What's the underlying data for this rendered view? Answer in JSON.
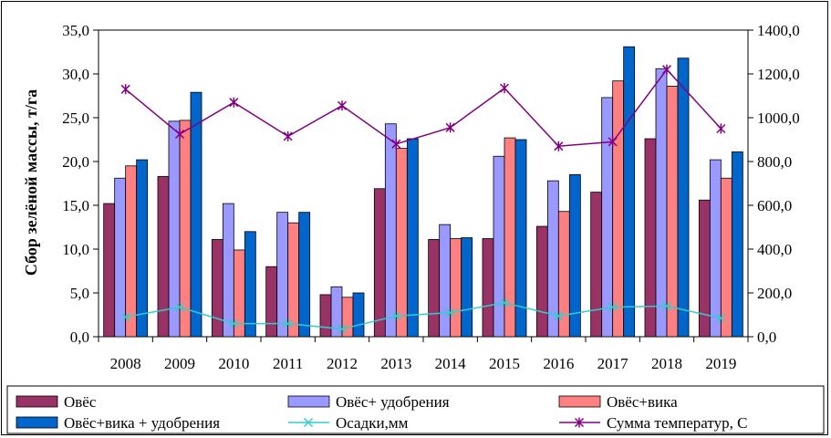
{
  "chart_data": {
    "type": "bar",
    "categories": [
      "2008",
      "2009",
      "2010",
      "2011",
      "2012",
      "2013",
      "2014",
      "2015",
      "2016",
      "2017",
      "2018",
      "2019"
    ],
    "ylabel": "Сбор зелёной массы, т/га",
    "ylim": [
      0,
      35
    ],
    "y_ticks": [
      "0,0",
      "5,0",
      "10,0",
      "15,0",
      "20,0",
      "25,0",
      "30,0",
      "35,0"
    ],
    "y2lim": [
      0,
      1400
    ],
    "y2_ticks": [
      "0,0",
      "200,0",
      "400,0",
      "600,0",
      "800,0",
      "1000,0",
      "1200,0",
      "1400,0"
    ],
    "series": [
      {
        "name": "Овёс",
        "kind": "bar",
        "axis": "left",
        "color": "#993366",
        "values": [
          15.2,
          18.3,
          11.1,
          8.0,
          4.8,
          16.9,
          11.1,
          11.2,
          12.6,
          16.5,
          22.6,
          15.6
        ]
      },
      {
        "name": "Овёс+ удобрения",
        "kind": "bar",
        "axis": "left",
        "color": "#9999FF",
        "values": [
          18.1,
          24.6,
          15.2,
          14.2,
          5.7,
          24.3,
          12.8,
          20.6,
          17.8,
          27.3,
          30.6,
          20.2
        ]
      },
      {
        "name": "Овёс+вика",
        "kind": "bar",
        "axis": "left",
        "color": "#FF8080",
        "values": [
          19.5,
          24.7,
          9.9,
          13.0,
          4.5,
          21.5,
          11.2,
          22.7,
          14.3,
          29.2,
          28.6,
          18.1
        ]
      },
      {
        "name": "Овёс+вика + удобрения",
        "kind": "bar",
        "axis": "left",
        "color": "#0066CC",
        "values": [
          20.2,
          27.9,
          12.0,
          14.2,
          5.0,
          22.6,
          11.3,
          22.5,
          18.5,
          33.1,
          31.8,
          21.1
        ]
      },
      {
        "name": "Осадки,мм",
        "kind": "line",
        "axis": "right",
        "color": "#33CCCC",
        "marker": "x",
        "values": [
          90,
          135,
          60,
          60,
          35,
          95,
          110,
          155,
          95,
          135,
          140,
          85
        ]
      },
      {
        "name": "Сумма температур,  С",
        "kind": "line",
        "axis": "right",
        "color": "#800080",
        "marker": "asterisk",
        "values": [
          1130,
          925,
          1070,
          915,
          1055,
          880,
          955,
          1135,
          870,
          890,
          1220,
          950
        ]
      }
    ]
  }
}
